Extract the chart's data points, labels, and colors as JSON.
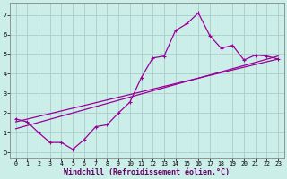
{
  "xlabel": "Windchill (Refroidissement éolien,°C)",
  "background_color": "#cceee8",
  "grid_color": "#aacccc",
  "line_color": "#990099",
  "xlim": [
    -0.5,
    23.5
  ],
  "ylim": [
    -0.3,
    7.6
  ],
  "xticks": [
    0,
    1,
    2,
    3,
    4,
    5,
    6,
    7,
    8,
    9,
    10,
    11,
    12,
    13,
    14,
    15,
    16,
    17,
    18,
    19,
    20,
    21,
    22,
    23
  ],
  "yticks": [
    0,
    1,
    2,
    3,
    4,
    5,
    6,
    7
  ],
  "line1_x": [
    0,
    1,
    2,
    3,
    4,
    5,
    6,
    7,
    8,
    9,
    10,
    11,
    12,
    13,
    14,
    15,
    16,
    17,
    18,
    19,
    20,
    21,
    22,
    23
  ],
  "line1_y": [
    1.7,
    1.55,
    1.0,
    0.5,
    0.5,
    0.15,
    0.65,
    1.3,
    1.4,
    2.0,
    2.55,
    3.8,
    4.8,
    4.9,
    6.2,
    6.55,
    7.1,
    5.95,
    5.3,
    5.45,
    4.7,
    4.95,
    4.9,
    4.75
  ],
  "line2_x": [
    0,
    23
  ],
  "line2_y": [
    1.55,
    4.75
  ],
  "line3_x": [
    0,
    23
  ],
  "line3_y": [
    1.2,
    4.9
  ],
  "marker": "+",
  "marker_size": 3,
  "marker_linewidth": 0.8,
  "linewidth": 0.9,
  "tick_fontsize": 4.8,
  "xlabel_fontsize": 6.0,
  "xlabel_color": "#660066",
  "spine_color": "#888888",
  "spine_linewidth": 0.6
}
